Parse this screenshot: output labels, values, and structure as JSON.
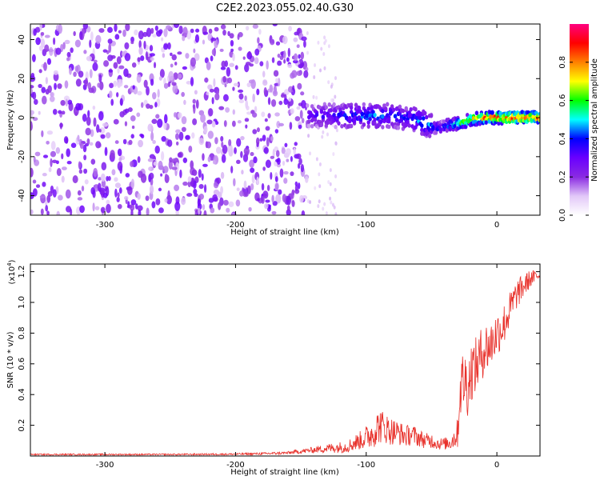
{
  "title": "C2E2.2023.055.02.40.G30",
  "chart_data": [
    {
      "type": "heatmap",
      "xlabel": "Height of straight line (km)",
      "ylabel": "Frequency (Hz)",
      "xlim": [
        -357,
        33
      ],
      "ylim": [
        -50,
        48
      ],
      "x_ticks": [
        -300,
        -200,
        -100,
        0
      ],
      "y_ticks": [
        -40,
        -20,
        0,
        20,
        40
      ],
      "noise_region_x": [
        -357,
        -145
      ],
      "sparse_region_x": [
        -145,
        -122
      ],
      "ridge": {
        "x": [
          -145,
          -130,
          -115,
          -100,
          -90,
          -80,
          -70,
          -62,
          -55,
          -48,
          -42,
          -38,
          -30,
          -20,
          -10,
          0,
          10,
          20,
          33
        ],
        "freq": [
          1,
          1,
          1,
          1,
          1,
          1,
          0,
          -1,
          -3,
          -5,
          -5,
          -4,
          -3,
          -1,
          0,
          0,
          0,
          0,
          0
        ],
        "amplitude": [
          0.3,
          0.35,
          0.4,
          0.45,
          0.45,
          0.4,
          0.4,
          0.45,
          0.5,
          0.45,
          0.4,
          0.5,
          0.6,
          0.75,
          0.85,
          0.9,
          0.9,
          0.9,
          0.85
        ]
      },
      "colorbar": {
        "label": "Normalized spectral amplitude",
        "range": [
          0.0,
          1.0
        ],
        "ticks": [
          "0.0",
          "0.2",
          "0.4",
          "0.6",
          "0.8"
        ],
        "colors": [
          "#ffffff",
          "#e2c8f8",
          "#8a2be2",
          "#6a00ff",
          "#0000ff",
          "#00ffff",
          "#00ff00",
          "#ffff00",
          "#ff8000",
          "#ff0000",
          "#ff0080"
        ]
      }
    },
    {
      "type": "line",
      "xlabel": "Height of straight line (km)",
      "ylabel": "SNR (10 * v/v)",
      "y_multiplier": "(x10",
      "y_multiplier_exp": "4",
      "y_multiplier_close": ")",
      "xlim": [
        -357,
        33
      ],
      "ylim": [
        0,
        1.25
      ],
      "x_ticks": [
        -300,
        -200,
        -100,
        0
      ],
      "y_ticks": [
        "0.2",
        "0.4",
        "0.6",
        "0.8",
        "1.0",
        "1.2"
      ],
      "color": "#e8302a",
      "series": [
        {
          "x": [
            -357,
            -300,
            -250,
            -200,
            -180,
            -160,
            -150,
            -140,
            -130,
            -115,
            -105,
            -100,
            -95,
            -90,
            -85,
            -80,
            -75,
            -70,
            -65,
            -60,
            -55,
            -50,
            -45,
            -40,
            -35,
            -30,
            -28,
            -25,
            -22,
            -20,
            -15,
            -10,
            -5,
            0,
            5,
            10,
            15,
            20,
            25,
            30,
            33
          ],
          "y": [
            0.01,
            0.01,
            0.01,
            0.012,
            0.015,
            0.02,
            0.03,
            0.04,
            0.05,
            0.06,
            0.1,
            0.12,
            0.15,
            0.2,
            0.18,
            0.16,
            0.15,
            0.13,
            0.14,
            0.12,
            0.1,
            0.1,
            0.08,
            0.08,
            0.09,
            0.15,
            0.45,
            0.5,
            0.45,
            0.55,
            0.6,
            0.7,
            0.72,
            0.8,
            0.85,
            0.95,
            1.05,
            1.1,
            1.15,
            1.17,
            1.18
          ],
          "noise_amplitude": [
            0.005,
            0.005,
            0.005,
            0.006,
            0.008,
            0.01,
            0.015,
            0.02,
            0.03,
            0.04,
            0.06,
            0.08,
            0.1,
            0.12,
            0.1,
            0.09,
            0.08,
            0.07,
            0.07,
            0.06,
            0.05,
            0.05,
            0.04,
            0.04,
            0.05,
            0.1,
            0.2,
            0.22,
            0.2,
            0.2,
            0.18,
            0.18,
            0.16,
            0.15,
            0.14,
            0.12,
            0.1,
            0.08,
            0.06,
            0.04,
            0.03
          ]
        }
      ]
    }
  ]
}
